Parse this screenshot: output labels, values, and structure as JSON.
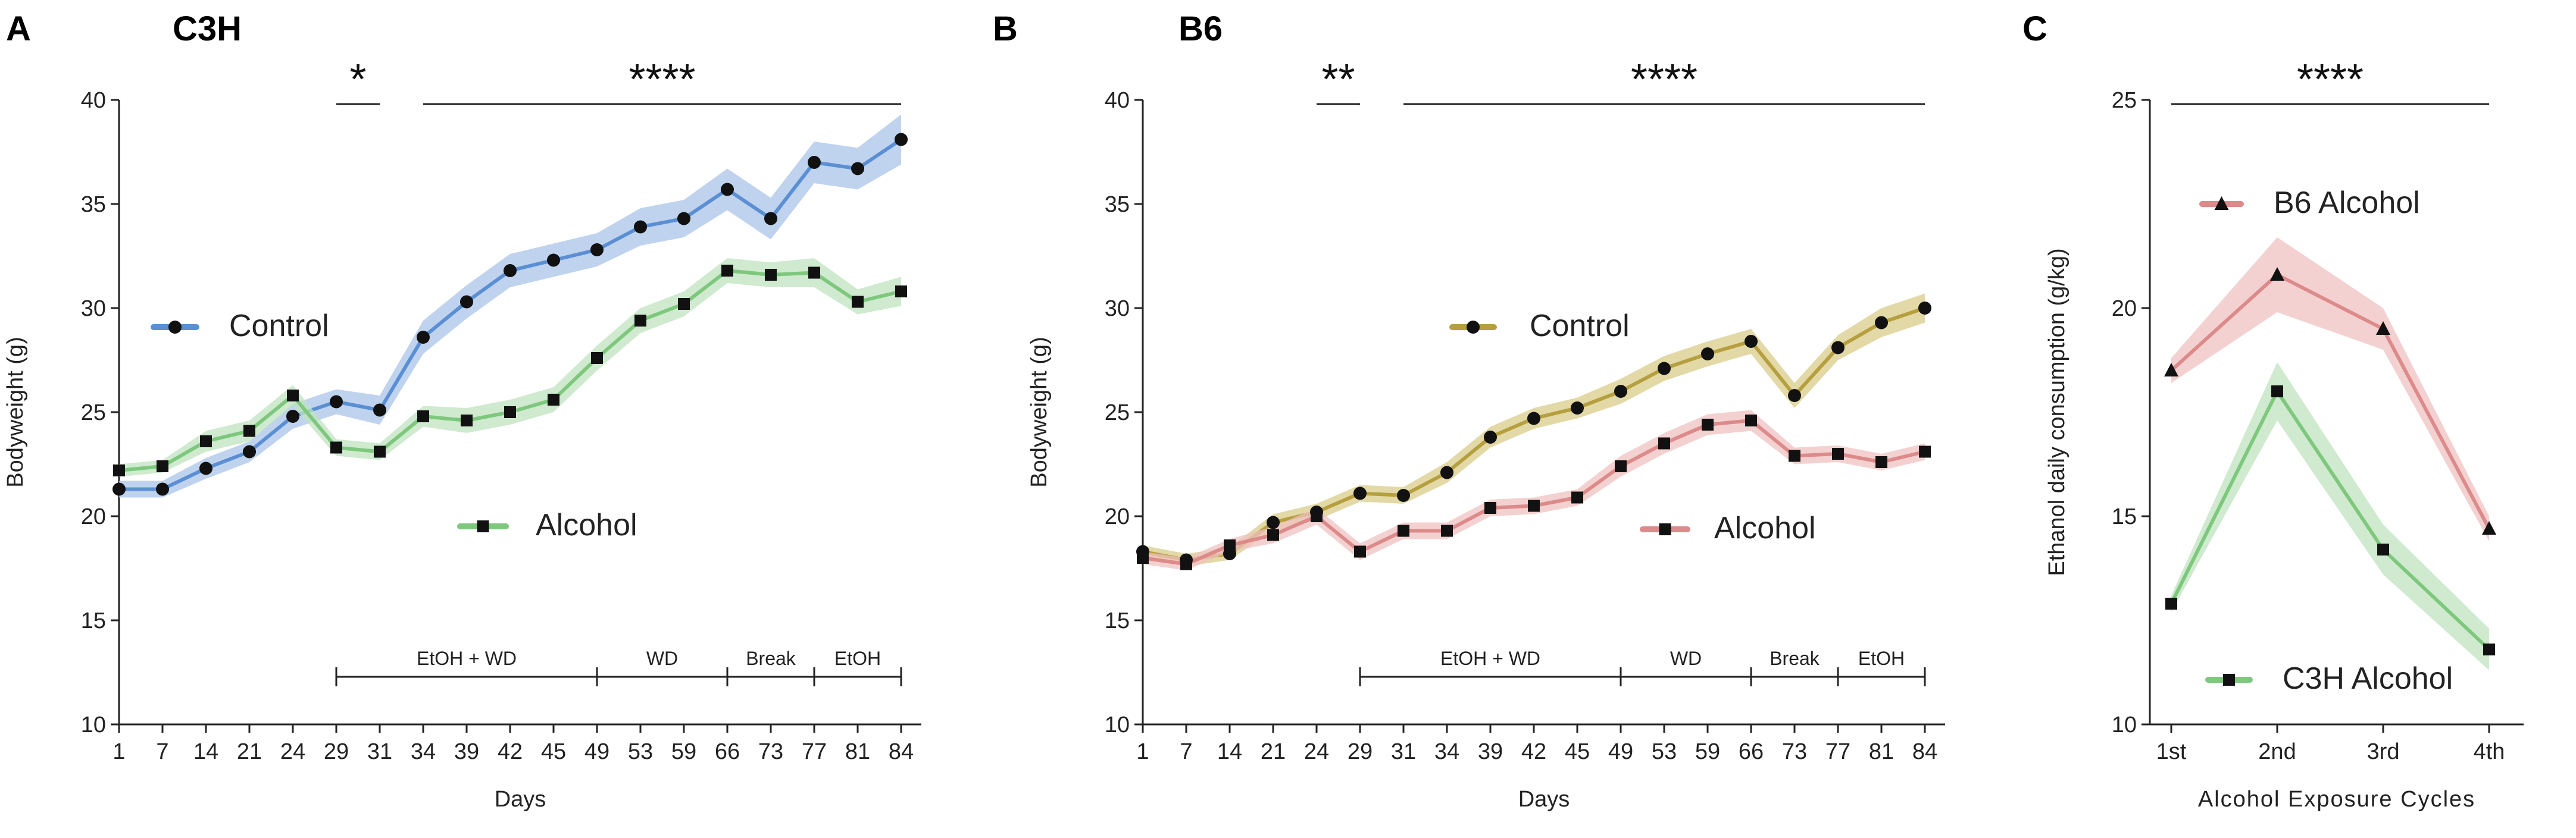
{
  "colors": {
    "c3h_control": "#5b8fd4",
    "c3h_control_band": "#a9c4ea",
    "c3h_alcohol": "#7ec87e",
    "c3h_alcohol_band": "#bfe3bf",
    "b6_control": "#b59f3e",
    "b6_control_band": "#d9cc8a",
    "b6_alcohol": "#dd8a8a",
    "b6_alcohol_band": "#f0c2c2",
    "marker": "#111111",
    "axis": "#222222"
  },
  "chart_data": [
    {
      "panel": "A",
      "title": "C3H",
      "type": "line",
      "xlabel": "Days",
      "ylabel": "Bodyweight (g)",
      "ylim": [
        10,
        40
      ],
      "yticks": [
        10,
        15,
        20,
        25,
        30,
        35,
        40
      ],
      "categories": [
        "1",
        "7",
        "14",
        "21",
        "24",
        "29",
        "31",
        "34",
        "39",
        "42",
        "45",
        "49",
        "53",
        "59",
        "66",
        "73",
        "77",
        "81",
        "84"
      ],
      "series": [
        {
          "name": "Control",
          "marker": "circle",
          "values": [
            21.3,
            21.3,
            22.3,
            23.1,
            24.8,
            25.5,
            25.1,
            28.6,
            30.3,
            31.8,
            32.3,
            32.8,
            33.9,
            34.3,
            35.7,
            34.3,
            37.0,
            36.7,
            38.1
          ],
          "err": [
            0.4,
            0.4,
            0.5,
            0.5,
            0.6,
            0.6,
            0.7,
            0.8,
            0.8,
            0.8,
            0.8,
            0.8,
            0.9,
            0.9,
            1.0,
            1.0,
            1.0,
            1.0,
            1.2
          ]
        },
        {
          "name": "Alcohol",
          "marker": "square",
          "values": [
            22.2,
            22.4,
            23.6,
            24.1,
            25.8,
            23.3,
            23.1,
            24.8,
            24.6,
            25.0,
            25.6,
            27.6,
            29.4,
            30.2,
            31.8,
            31.6,
            31.7,
            30.3,
            30.8
          ],
          "err": [
            0.3,
            0.3,
            0.5,
            0.5,
            0.5,
            0.4,
            0.4,
            0.5,
            0.6,
            0.6,
            0.6,
            0.6,
            0.6,
            0.6,
            0.6,
            0.6,
            0.7,
            0.6,
            0.7
          ]
        }
      ],
      "legend": [
        {
          "label": "Control",
          "series": 0
        },
        {
          "label": "Alcohol",
          "series": 1
        }
      ],
      "significance": [
        {
          "label": "*",
          "from": "29",
          "to": "31"
        },
        {
          "label": "****",
          "from": "34",
          "to": "84"
        }
      ],
      "phases": [
        {
          "label": "EtOH + WD",
          "from": "29",
          "to": "49"
        },
        {
          "label": "WD",
          "from": "49",
          "to": "66"
        },
        {
          "label": "Break",
          "from": "66",
          "to": "77"
        },
        {
          "label": "EtOH",
          "from": "77",
          "to": "84"
        }
      ]
    },
    {
      "panel": "B",
      "title": "B6",
      "type": "line",
      "xlabel": "Days",
      "ylabel": "Bodyweight (g)",
      "ylim": [
        10,
        40
      ],
      "yticks": [
        10,
        15,
        20,
        25,
        30,
        35,
        40
      ],
      "categories": [
        "1",
        "7",
        "14",
        "21",
        "24",
        "29",
        "31",
        "34",
        "39",
        "42",
        "45",
        "49",
        "53",
        "59",
        "66",
        "73",
        "77",
        "81",
        "84"
      ],
      "series": [
        {
          "name": "Control",
          "marker": "circle",
          "values": [
            18.3,
            17.9,
            18.2,
            19.7,
            20.2,
            21.1,
            21.0,
            22.1,
            23.8,
            24.7,
            25.2,
            26.0,
            27.1,
            27.8,
            28.4,
            25.8,
            28.1,
            29.3,
            30.0
          ],
          "err": [
            0.3,
            0.3,
            0.3,
            0.4,
            0.4,
            0.4,
            0.4,
            0.5,
            0.5,
            0.5,
            0.5,
            0.6,
            0.6,
            0.6,
            0.6,
            0.6,
            0.6,
            0.7,
            0.7
          ]
        },
        {
          "name": "Alcohol",
          "marker": "square",
          "values": [
            18.0,
            17.7,
            18.6,
            19.1,
            20.0,
            18.3,
            19.3,
            19.3,
            20.4,
            20.5,
            20.9,
            22.4,
            23.5,
            24.4,
            24.6,
            22.9,
            23.0,
            22.6,
            23.1
          ],
          "err": [
            0.3,
            0.3,
            0.3,
            0.4,
            0.4,
            0.4,
            0.4,
            0.4,
            0.4,
            0.4,
            0.4,
            0.5,
            0.5,
            0.5,
            0.5,
            0.4,
            0.4,
            0.4,
            0.4
          ]
        }
      ],
      "legend": [
        {
          "label": "Control",
          "series": 0
        },
        {
          "label": "Alcohol",
          "series": 1
        }
      ],
      "significance": [
        {
          "label": "**",
          "from": "24",
          "to": "29"
        },
        {
          "label": "****",
          "from": "31",
          "to": "84"
        }
      ],
      "phases": [
        {
          "label": "EtOH + WD",
          "from": "29",
          "to": "49"
        },
        {
          "label": "WD",
          "from": "49",
          "to": "66"
        },
        {
          "label": "Break",
          "from": "66",
          "to": "77"
        },
        {
          "label": "EtOH",
          "from": "77",
          "to": "84"
        }
      ]
    },
    {
      "panel": "C",
      "title": "",
      "type": "line",
      "xlabel": "Alcohol Exposure Cycles",
      "ylabel": "Ethanol daily consumption (g/kg)",
      "ylim": [
        10,
        25
      ],
      "yticks": [
        10,
        15,
        20,
        25
      ],
      "categories": [
        "1st",
        "2nd",
        "3rd",
        "4th"
      ],
      "series": [
        {
          "name": "B6 Alcohol",
          "marker": "triangle",
          "values": [
            18.5,
            20.8,
            19.5,
            14.7
          ],
          "err": [
            0.3,
            0.9,
            0.5,
            0.3
          ]
        },
        {
          "name": "C3H Alcohol",
          "marker": "square",
          "values": [
            12.9,
            18.0,
            14.2,
            11.8
          ],
          "err": [
            0.2,
            0.7,
            0.6,
            0.5
          ]
        }
      ],
      "legend": [
        {
          "label": "B6 Alcohol",
          "series": 0
        },
        {
          "label": "C3H Alcohol",
          "series": 1
        }
      ],
      "significance": [
        {
          "label": "****",
          "from": "1st",
          "to": "4th"
        }
      ],
      "phases": []
    }
  ]
}
